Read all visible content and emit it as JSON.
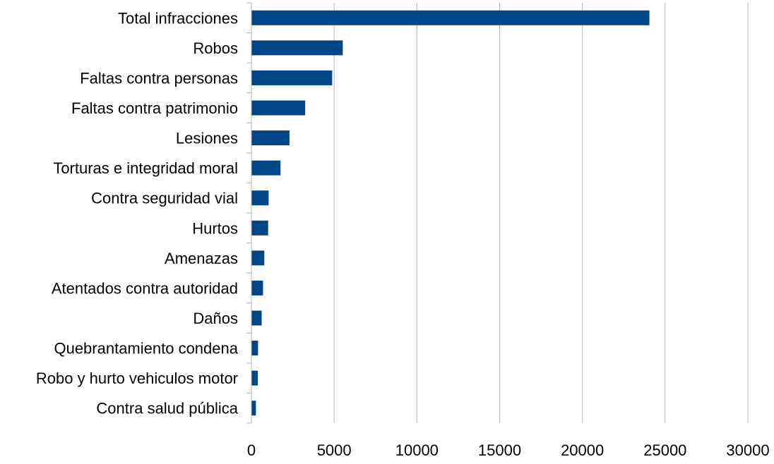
{
  "chart_data": {
    "type": "bar",
    "orientation": "horizontal",
    "categories": [
      "Total infracciones",
      "Robos",
      "Faltas contra personas",
      "Faltas contra patrimonio",
      "Lesiones",
      "Torturas e integridad moral",
      "Contra seguridad vial",
      "Hurtos",
      "Amenazas",
      "Atentados contra autoridad",
      "Daños",
      "Quebrantamiento condena",
      "Robo y hurto vehiculos motor",
      "Contra salud pública"
    ],
    "values": [
      24050,
      5520,
      4880,
      3250,
      2300,
      1760,
      1040,
      1010,
      780,
      700,
      620,
      400,
      390,
      270
    ],
    "xlim": [
      0,
      30000
    ],
    "xticks": [
      "0",
      "5000",
      "10000",
      "15000",
      "20000",
      "25000",
      "30000"
    ],
    "title": "",
    "xlabel": "",
    "ylabel": "",
    "grid": "vertical",
    "legend": "none",
    "colors": {
      "bar": "#004586",
      "grid": "#b3b3b3",
      "axis": "#b3b3b3"
    }
  }
}
